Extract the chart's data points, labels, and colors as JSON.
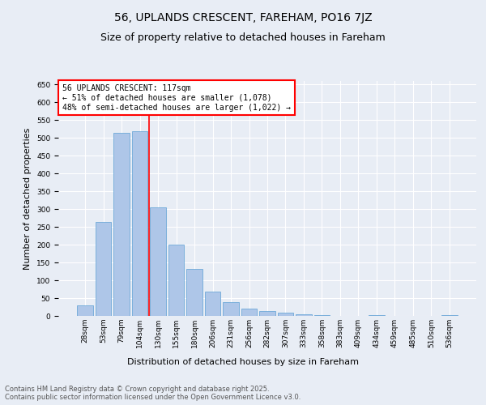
{
  "title": "56, UPLANDS CRESCENT, FAREHAM, PO16 7JZ",
  "subtitle": "Size of property relative to detached houses in Fareham",
  "xlabel": "Distribution of detached houses by size in Fareham",
  "ylabel": "Number of detached properties",
  "categories": [
    "28sqm",
    "53sqm",
    "79sqm",
    "104sqm",
    "130sqm",
    "155sqm",
    "180sqm",
    "206sqm",
    "231sqm",
    "256sqm",
    "282sqm",
    "307sqm",
    "333sqm",
    "358sqm",
    "383sqm",
    "409sqm",
    "434sqm",
    "459sqm",
    "485sqm",
    "510sqm",
    "536sqm"
  ],
  "values": [
    30,
    265,
    515,
    520,
    305,
    200,
    133,
    68,
    38,
    20,
    14,
    9,
    5,
    3,
    0,
    0,
    3,
    0,
    0,
    0,
    3
  ],
  "bar_color": "#aec6e8",
  "bar_edge_color": "#5a9fd4",
  "vline_x": 3.5,
  "vline_color": "red",
  "annotation_text": "56 UPLANDS CRESCENT: 117sqm\n← 51% of detached houses are smaller (1,078)\n48% of semi-detached houses are larger (1,022) →",
  "annotation_box_color": "white",
  "annotation_box_edge": "red",
  "ylim": [
    0,
    660
  ],
  "yticks": [
    0,
    50,
    100,
    150,
    200,
    250,
    300,
    350,
    400,
    450,
    500,
    550,
    600,
    650
  ],
  "footer_text": "Contains HM Land Registry data © Crown copyright and database right 2025.\nContains public sector information licensed under the Open Government Licence v3.0.",
  "bg_color": "#e8edf5",
  "plot_bg_color": "#e8edf5",
  "title_fontsize": 10,
  "subtitle_fontsize": 9,
  "tick_fontsize": 6.5,
  "label_fontsize": 8,
  "footer_fontsize": 6,
  "annotation_fontsize": 7
}
